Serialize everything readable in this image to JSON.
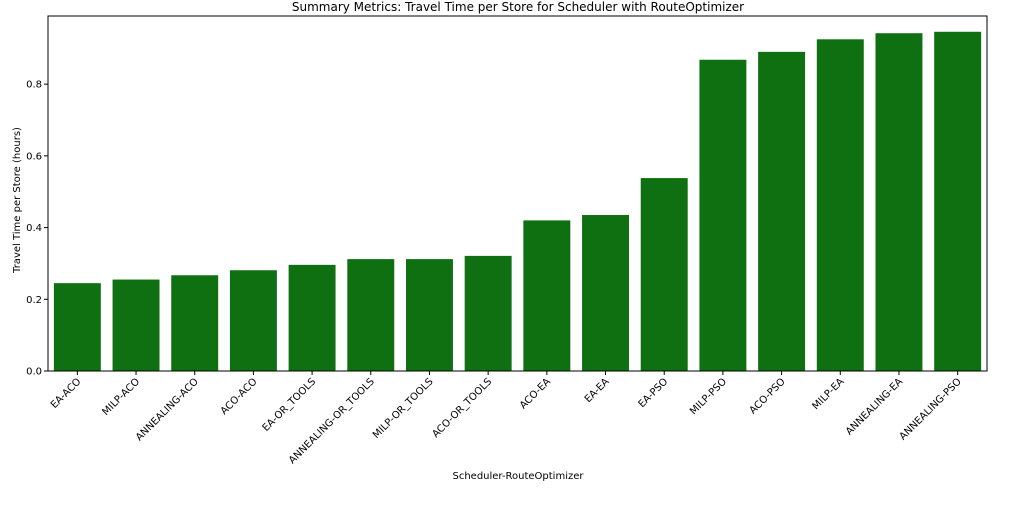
{
  "chart_data": {
    "type": "bar",
    "title": "Summary Metrics: Travel Time per Store for Scheduler with RouteOptimizer",
    "xlabel": "Scheduler-RouteOptimizer",
    "ylabel": "Travel Time per Store  (hours)",
    "ylim": [
      0,
      0.99
    ],
    "yticks": [
      0.0,
      0.2,
      0.4,
      0.6,
      0.8
    ],
    "ytick_labels": [
      "0.0",
      "0.2",
      "0.4",
      "0.6",
      "0.8"
    ],
    "categories": [
      "EA-ACO",
      "MILP-ACO",
      "ANNEALING-ACO",
      "ACO-ACO",
      "EA-OR_TOOLS",
      "ANNEALING-OR_TOOLS",
      "MILP-OR_TOOLS",
      "ACO-OR_TOOLS",
      "ACO-EA",
      "EA-EA",
      "EA-PSO",
      "MILP-PSO",
      "ACO-PSO",
      "MILP-EA",
      "ANNEALING-EA",
      "ANNEALING-PSO"
    ],
    "values": [
      0.245,
      0.255,
      0.267,
      0.281,
      0.296,
      0.312,
      0.312,
      0.321,
      0.42,
      0.435,
      0.538,
      0.868,
      0.89,
      0.925,
      0.942,
      0.946
    ],
    "bar_color": "#0e7010",
    "grid": false,
    "legend": "none"
  }
}
